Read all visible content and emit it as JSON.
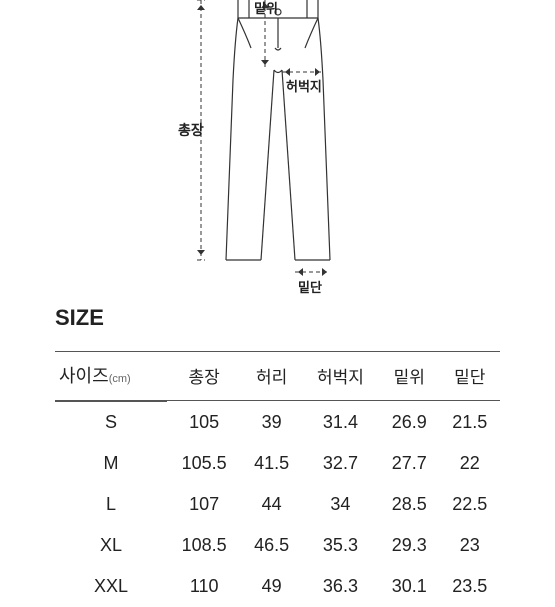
{
  "diagram": {
    "labels": {
      "total_length": "총장",
      "rise": "밑위",
      "thigh": "허벅지",
      "hem": "밑단"
    },
    "stroke": "#333333",
    "dash": "4,3"
  },
  "size_heading": "SIZE",
  "table": {
    "header": {
      "size_label": "사이즈",
      "unit": "(cm)",
      "columns": [
        "총장",
        "허리",
        "허벅지",
        "밑위",
        "밑단"
      ]
    },
    "rows": [
      {
        "size": "S",
        "values": [
          "105",
          "39",
          "31.4",
          "26.9",
          "21.5"
        ]
      },
      {
        "size": "M",
        "values": [
          "105.5",
          "41.5",
          "32.7",
          "27.7",
          "22"
        ]
      },
      {
        "size": "L",
        "values": [
          "107",
          "44",
          "34",
          "28.5",
          "22.5"
        ]
      },
      {
        "size": "XL",
        "values": [
          "108.5",
          "46.5",
          "35.3",
          "29.3",
          "23"
        ]
      },
      {
        "size": "XXL",
        "values": [
          "110",
          "49",
          "36.3",
          "30.1",
          "23.5"
        ]
      }
    ]
  }
}
